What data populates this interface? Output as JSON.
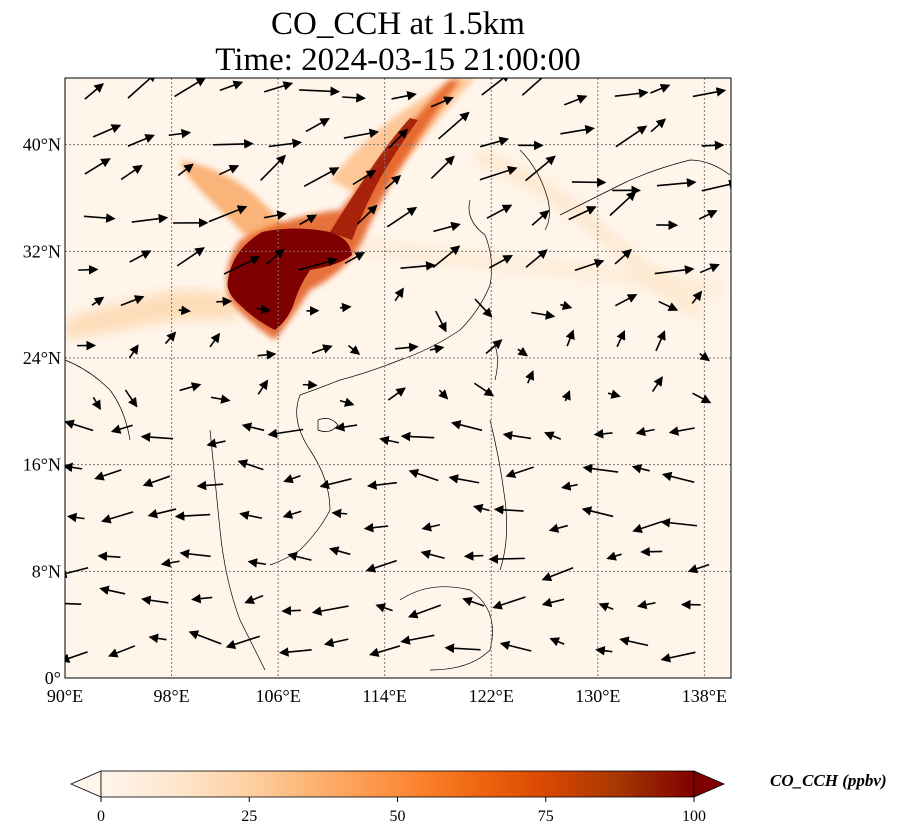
{
  "title": {
    "line1": "CO_CCH at 1.5km",
    "line2": "Time: 2024-03-15 21:00:00"
  },
  "map": {
    "lon_range": [
      90,
      140
    ],
    "lat_range": [
      0,
      45
    ],
    "lon_ticks": [
      {
        "value": 90,
        "label": "90°E"
      },
      {
        "value": 98,
        "label": "98°E"
      },
      {
        "value": 106,
        "label": "106°E"
      },
      {
        "value": 114,
        "label": "114°E"
      },
      {
        "value": 122,
        "label": "122°E"
      },
      {
        "value": 130,
        "label": "130°E"
      },
      {
        "value": 138,
        "label": "138°E"
      }
    ],
    "lat_ticks": [
      {
        "value": 0,
        "label": "0°"
      },
      {
        "value": 8,
        "label": "8°N"
      },
      {
        "value": 16,
        "label": "16°N"
      },
      {
        "value": 24,
        "label": "24°N"
      },
      {
        "value": 32,
        "label": "32°N"
      },
      {
        "value": 40,
        "label": "40°N"
      }
    ],
    "gridlines": true,
    "background_color": "#fff5eb"
  },
  "colorbar": {
    "label": "CO_CCH (ppbv)",
    "ticks": [
      0,
      25,
      50,
      75,
      100
    ],
    "range": [
      0,
      100
    ],
    "extend": "both",
    "colors": [
      "#fff5eb",
      "#fee6ce",
      "#fdd0a2",
      "#fdae6b",
      "#fd8d3c",
      "#f16913",
      "#d94801",
      "#a63603",
      "#7f0000"
    ]
  }
}
